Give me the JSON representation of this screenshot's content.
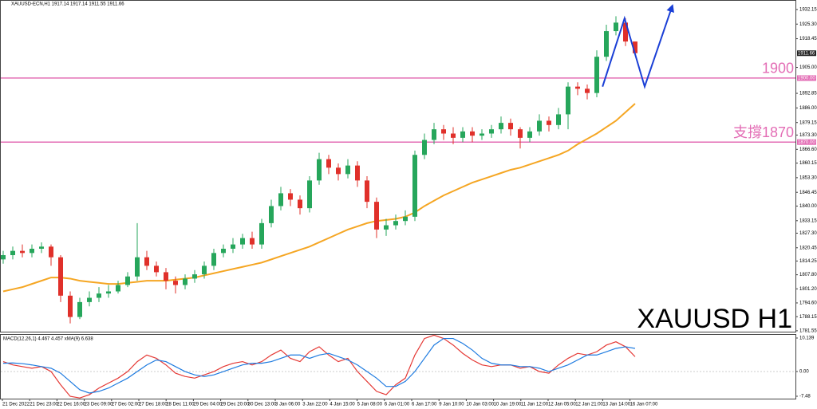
{
  "chart_data": {
    "type": "candlestick",
    "header": "XAUUSD-ECN,H1  1917.14 1917.14 1911.55 1911.66",
    "title": "XAUUSD H1",
    "up_color": "#26a65b",
    "down_color": "#e0302a",
    "open": [
      1815,
      1817,
      1819,
      1818,
      1820,
      1821,
      1816,
      1798,
      1788,
      1795,
      1797,
      1799,
      1800,
      1803,
      1807,
      1816,
      1812,
      1809,
      1805,
      1803,
      1806,
      1808,
      1812,
      1818,
      1820,
      1822,
      1825,
      1822,
      1832,
      1840,
      1846,
      1843,
      1839,
      1852,
      1862,
      1858,
      1855,
      1859,
      1852,
      1842,
      1829,
      1831,
      1833,
      1835,
      1864,
      1871,
      1876,
      1874,
      1872,
      1875,
      1873,
      1874,
      1876,
      1879,
      1876,
      1872,
      1875,
      1880,
      1878,
      1883,
      1896,
      1895,
      1893,
      1910,
      1922,
      1926,
      1917.14
    ],
    "high": [
      1819,
      1821,
      1822,
      1822,
      1823,
      1822,
      1817,
      1800,
      1797,
      1800,
      1802,
      1803,
      1805,
      1809,
      1832,
      1819,
      1814,
      1811,
      1807,
      1808,
      1810,
      1814,
      1820,
      1822,
      1825,
      1827,
      1828,
      1834,
      1843,
      1849,
      1848,
      1845,
      1854,
      1865,
      1864,
      1860,
      1862,
      1861,
      1854,
      1844,
      1834,
      1836,
      1838,
      1866,
      1874,
      1879,
      1878,
      1877,
      1877,
      1877,
      1876,
      1878,
      1882,
      1881,
      1877,
      1877,
      1883,
      1882,
      1886,
      1898,
      1898,
      1897,
      1913,
      1925,
      1929,
      1928,
      1917.14
    ],
    "low": [
      1813,
      1815,
      1816,
      1816,
      1818,
      1812,
      1795,
      1785,
      1787,
      1793,
      1795,
      1797,
      1799,
      1802,
      1805,
      1810,
      1807,
      1801,
      1799,
      1801,
      1804,
      1806,
      1810,
      1816,
      1818,
      1820,
      1820,
      1820,
      1830,
      1838,
      1840,
      1836,
      1837,
      1850,
      1855,
      1852,
      1853,
      1849,
      1839,
      1825,
      1826,
      1829,
      1831,
      1833,
      1862,
      1869,
      1871,
      1869,
      1870,
      1870,
      1871,
      1872,
      1874,
      1873,
      1867,
      1870,
      1873,
      1875,
      1876,
      1876,
      1892,
      1890,
      1891,
      1908,
      1920,
      1915,
      1911.55
    ],
    "close": [
      1817,
      1819,
      1818,
      1820,
      1821,
      1816,
      1798,
      1788,
      1795,
      1797,
      1799,
      1800,
      1803,
      1807,
      1816,
      1812,
      1809,
      1805,
      1803,
      1806,
      1808,
      1812,
      1818,
      1820,
      1822,
      1825,
      1822,
      1832,
      1840,
      1846,
      1843,
      1839,
      1852,
      1862,
      1858,
      1855,
      1859,
      1852,
      1842,
      1829,
      1831,
      1833,
      1835,
      1864,
      1871,
      1876,
      1874,
      1872,
      1875,
      1873,
      1874,
      1876,
      1879,
      1876,
      1872,
      1875,
      1880,
      1878,
      1883,
      1896,
      1895,
      1893,
      1910,
      1922,
      1926,
      1917.14,
      1911.66
    ],
    "moving_average": {
      "color": "#f5a623",
      "values": [
        1800,
        1801,
        1802,
        1803.5,
        1805,
        1806.5,
        1806.5,
        1806,
        1805,
        1804.5,
        1804,
        1803.5,
        1803.5,
        1804,
        1804.5,
        1805,
        1805,
        1805,
        1805.5,
        1806,
        1806.5,
        1807.5,
        1808.5,
        1809.5,
        1810.5,
        1811.5,
        1812.5,
        1813.5,
        1815,
        1816.5,
        1818,
        1819.5,
        1821,
        1823,
        1825,
        1827,
        1829,
        1830.5,
        1832,
        1833,
        1833.5,
        1834,
        1835,
        1837,
        1840,
        1842.5,
        1845,
        1847,
        1849,
        1851,
        1852.5,
        1854,
        1855.5,
        1857,
        1858,
        1859.5,
        1861,
        1862.5,
        1864,
        1866,
        1869,
        1871.5,
        1874,
        1877,
        1880,
        1884,
        1888
      ]
    },
    "projection": {
      "color": "#1a3fd6",
      "x": [
        62.6,
        64.9,
        67,
        69.9
      ],
      "values": [
        1896,
        1928,
        1896,
        1934
      ]
    },
    "hlines": [
      {
        "value": 1900,
        "label": "1900",
        "axis_label": "1900.00",
        "color": "#e36db5"
      },
      {
        "value": 1870,
        "label": "支撐1870",
        "axis_label": "1870.00",
        "color": "#e36db5"
      }
    ],
    "ylim": [
      1781.5,
      1936.6
    ],
    "yticks": [
      {
        "value": 1932.15,
        "label": "1932.15"
      },
      {
        "value": 1925.3,
        "label": "1925.30"
      },
      {
        "value": 1918.45,
        "label": "1918.45"
      },
      {
        "value": 1905,
        "label": "1905.00"
      },
      {
        "value": 1892.85,
        "label": "1892.85"
      },
      {
        "value": 1886,
        "label": "1886.00"
      },
      {
        "value": 1879.15,
        "label": "1879.15"
      },
      {
        "value": 1873.3,
        "label": "1873.30"
      },
      {
        "value": 1866.6,
        "label": "1866.60"
      },
      {
        "value": 1860.15,
        "label": "1860.15"
      },
      {
        "value": 1853.3,
        "label": "1853.30"
      },
      {
        "value": 1846.45,
        "label": "1846.45"
      },
      {
        "value": 1840,
        "label": "1840.00"
      },
      {
        "value": 1833.15,
        "label": "1833.15"
      },
      {
        "value": 1827.3,
        "label": "1827.30"
      },
      {
        "value": 1820.45,
        "label": "1820.45"
      },
      {
        "value": 1814.25,
        "label": "1814.25"
      },
      {
        "value": 1807.8,
        "label": "1807.80"
      },
      {
        "value": 1801.2,
        "label": "1801.20"
      },
      {
        "value": 1794.6,
        "label": "1794.60"
      },
      {
        "value": 1788.15,
        "label": "1788.15"
      },
      {
        "value": 1781.55,
        "label": "1781.55"
      }
    ],
    "x_labels": [
      "21 Dec 2022",
      "21 Dec 23:00",
      "22 Dec 16:00",
      "23 Dec 09:00",
      "27 Dec 02:00",
      "27 Dec 18:00",
      "28 Dec 11:00",
      "29 Dec 04:00",
      "29 Dec 20:00",
      "30 Dec 13:00",
      "3 Jan 06:00",
      "3 Jan 22:00",
      "4 Jan 15:00",
      "5 Jan 08:00",
      "6 Jan 01:00",
      "6 Jan 17:00",
      "9 Jan 10:00",
      "10 Jan 03:00",
      "10 Jan 19:00",
      "11 Jan 12:00",
      "12 Jan 05:00",
      "12 Jan 21:00",
      "13 Jan 14:00",
      "16 Jan 07:00"
    ],
    "macd": {
      "header": "MACD(12,26,1) 4.467 4.457 xMA(9) 6.638",
      "ylim": [
        -8.2,
        11.1
      ],
      "yticks": [
        10.139,
        {
          "value": 0,
          "label": "0.00"
        },
        -7.48
      ],
      "series": [
        {
          "color": "#e53935",
          "values": [
            3,
            2,
            1.5,
            1,
            1.5,
            0,
            -4,
            -7.5,
            -8,
            -7,
            -5,
            -3.5,
            -2,
            0,
            3,
            5,
            4,
            2,
            -0.5,
            -1.5,
            -2,
            -1,
            0,
            1.5,
            2.5,
            3,
            2,
            3,
            5,
            6.5,
            4,
            3,
            6,
            7.5,
            5,
            3,
            4,
            0,
            -3,
            -6,
            -7,
            -4,
            -2,
            5,
            10,
            11,
            10,
            8,
            5.5,
            3.5,
            2,
            1.5,
            2,
            2,
            1,
            1.5,
            0,
            -0.5,
            2,
            4,
            5.5,
            5,
            6,
            8,
            9,
            7.5,
            4.5
          ]
        },
        {
          "color": "#1e7be0",
          "values": [
            2.5,
            2.6,
            2.4,
            2,
            1.5,
            1,
            -0.5,
            -3,
            -5.5,
            -6.5,
            -6,
            -5,
            -3.5,
            -2,
            0,
            2,
            3.5,
            3,
            1.5,
            0,
            -1,
            -1.5,
            -1,
            0,
            1,
            2,
            2.5,
            2.5,
            3,
            4,
            5,
            5,
            4,
            5,
            5.5,
            4.5,
            3.5,
            2,
            0,
            -2,
            -4.5,
            -4.5,
            -3,
            0,
            4,
            8,
            10,
            10,
            8.5,
            6.5,
            4,
            2.5,
            2,
            2,
            1.5,
            1.5,
            1,
            0,
            1,
            2,
            3.5,
            5,
            5,
            6,
            7,
            7.5,
            7
          ]
        }
      ]
    }
  }
}
